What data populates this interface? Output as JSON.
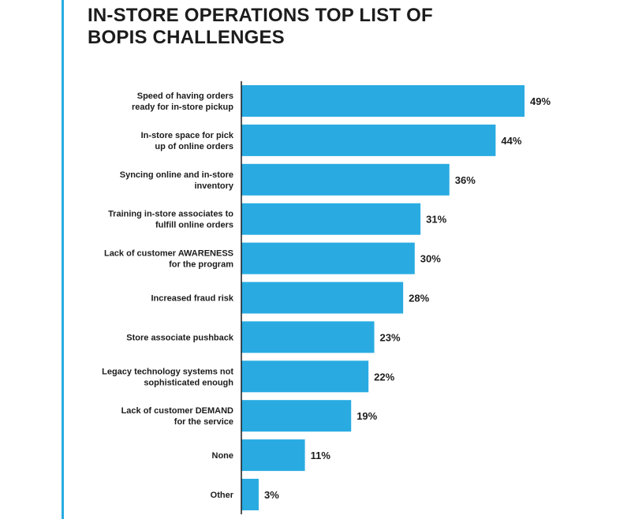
{
  "title_lines": [
    "IN-STORE OPERATIONS TOP LIST OF",
    "BOPIS CHALLENGES"
  ],
  "colors": {
    "bar": "#29abe2",
    "accent": "#29abe2",
    "axis": "#1c1c1c",
    "text": "#1c1c1c"
  },
  "chart_data": {
    "type": "bar",
    "orientation": "horizontal",
    "title": "IN-STORE OPERATIONS TOP LIST OF BOPIS CHALLENGES",
    "categories": [
      [
        "Speed of having orders",
        "ready for in-store pickup"
      ],
      [
        "In-store space for pick",
        "up of online orders"
      ],
      [
        "Syncing online and in-store",
        "inventory"
      ],
      [
        "Training in-store associates to",
        "fulfill online orders"
      ],
      [
        "Lack of customer AWARENESS",
        "for the program"
      ],
      [
        "Increased fraud risk"
      ],
      [
        "Store associate pushback"
      ],
      [
        "Legacy technology systems not",
        "sophisticated enough"
      ],
      [
        "Lack of customer DEMAND",
        "for the service"
      ],
      [
        "None"
      ],
      [
        "Other"
      ]
    ],
    "values": [
      49,
      44,
      36,
      31,
      30,
      28,
      23,
      22,
      19,
      11,
      3
    ],
    "value_labels": [
      "49%",
      "44%",
      "36%",
      "31%",
      "30%",
      "28%",
      "23%",
      "22%",
      "19%",
      "11%",
      "3%"
    ],
    "unit": "%",
    "grid": false,
    "legend": "none"
  }
}
